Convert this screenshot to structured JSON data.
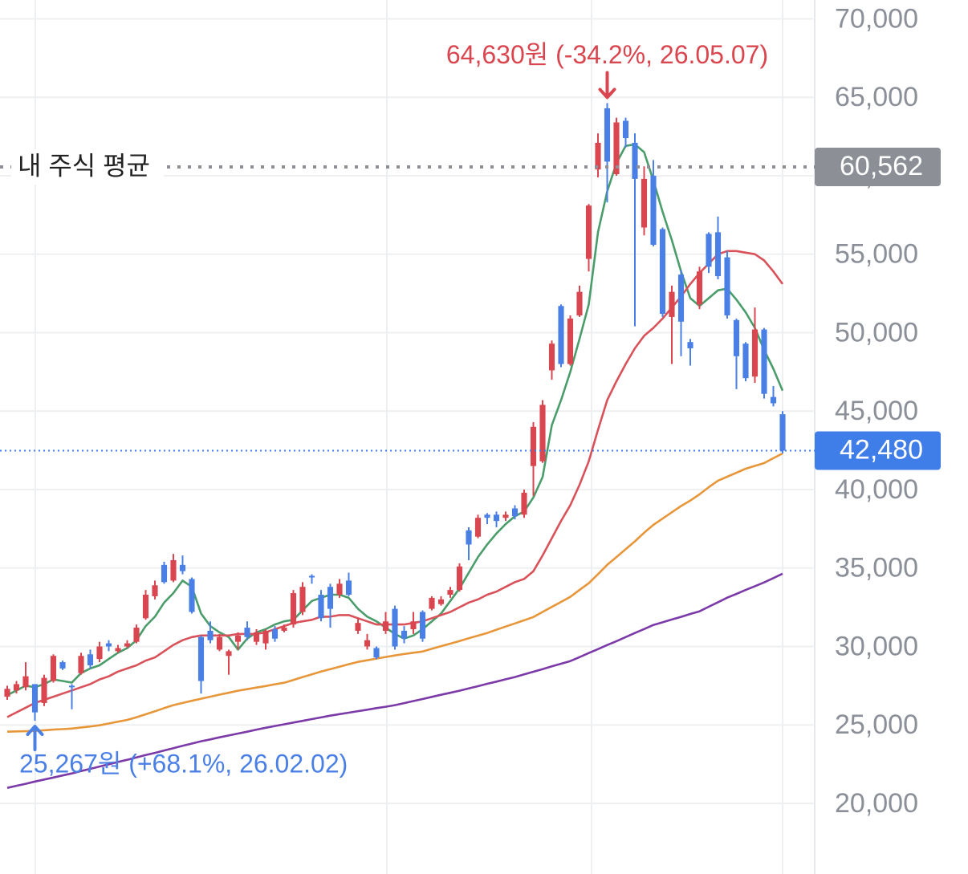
{
  "chart_data": {
    "type": "candlestick",
    "up_color": "#d9464f",
    "down_color": "#4a80e6",
    "ylim": [
      15500,
      71200
    ],
    "yticks": [
      {
        "value": 20000,
        "label": "20,000"
      },
      {
        "value": 25000,
        "label": "25,000"
      },
      {
        "value": 30000,
        "label": "30,000"
      },
      {
        "value": 35000,
        "label": "35,000"
      },
      {
        "value": 40000,
        "label": "40,000"
      },
      {
        "value": 45000,
        "label": "45,000"
      },
      {
        "value": 50000,
        "label": "50,000"
      },
      {
        "value": 55000,
        "label": "55,000"
      },
      {
        "value": 60000,
        "label": "60,000"
      },
      {
        "value": 65000,
        "label": "65,000"
      },
      {
        "value": 70000,
        "label": "70,000"
      }
    ],
    "grid": true,
    "open": [
      26800,
      27200,
      27400,
      27600,
      26400,
      27800,
      29000,
      27500,
      28300,
      29500,
      29200,
      30200,
      29700,
      30000,
      30300,
      31800,
      33200,
      35200,
      34200,
      35200,
      34300,
      30600,
      31000,
      29800,
      29400,
      30300,
      31200,
      30300,
      30200,
      31100,
      31000,
      31400,
      32200,
      34500,
      33300,
      33800,
      33300,
      34200,
      31000,
      30000,
      29900,
      31000,
      32400,
      31000,
      31100,
      32200,
      32400,
      32700,
      33300,
      33600,
      37400,
      37000,
      38400,
      38400,
      38200,
      38800,
      38400,
      41500,
      41800,
      47600,
      51700,
      48000,
      51100,
      54700,
      60400,
      64300,
      60100,
      63500,
      62100,
      56700,
      60000,
      56600,
      51000,
      53700,
      49400,
      51800,
      56300,
      56400,
      54800,
      50800,
      49300,
      47200,
      50200,
      45900,
      44800
    ],
    "high": [
      27500,
      27800,
      29000,
      27600,
      28200,
      29500,
      29100,
      27600,
      29600,
      29800,
      30300,
      30400,
      30100,
      30400,
      31400,
      33600,
      34200,
      35400,
      35900,
      35800,
      34400,
      30700,
      31600,
      30800,
      29800,
      30900,
      31600,
      31100,
      31100,
      31300,
      31400,
      33600,
      34100,
      34600,
      33600,
      34000,
      34300,
      34700,
      31800,
      30800,
      30000,
      32200,
      32600,
      31300,
      32200,
      32300,
      33200,
      33200,
      33800,
      35300,
      37600,
      38400,
      38500,
      38600,
      38600,
      39000,
      40000,
      44300,
      45700,
      49500,
      51800,
      51100,
      53000,
      58200,
      62700,
      64630,
      63700,
      63700,
      62700,
      60600,
      61000,
      56700,
      53000,
      54000,
      49600,
      54200,
      56400,
      57400,
      55200,
      50900,
      49400,
      51600,
      50300,
      46600,
      45000
    ],
    "low": [
      26600,
      27000,
      27200,
      25267,
      26200,
      27700,
      28500,
      26000,
      28200,
      28600,
      29000,
      29700,
      29600,
      29900,
      30200,
      31700,
      33000,
      34000,
      34100,
      34600,
      32100,
      27000,
      30200,
      29700,
      28200,
      29800,
      30400,
      30100,
      29800,
      30300,
      30900,
      31200,
      32000,
      34000,
      31600,
      31200,
      33100,
      33200,
      30800,
      29800,
      29200,
      30800,
      29800,
      30200,
      30800,
      30300,
      32300,
      32600,
      33100,
      33500,
      35500,
      36900,
      37800,
      37600,
      38000,
      38100,
      38200,
      39600,
      41700,
      47000,
      47800,
      47900,
      51000,
      53900,
      59900,
      58300,
      60000,
      61800,
      50400,
      56200,
      55500,
      51000,
      48000,
      48500,
      47900,
      51500,
      53800,
      53400,
      50900,
      46400,
      46900,
      46800,
      45800,
      45300,
      42300
    ],
    "close": [
      27300,
      27600,
      28100,
      25800,
      28000,
      29400,
      28600,
      27400,
      29400,
      28800,
      30000,
      30000,
      29900,
      30200,
      31200,
      33300,
      33900,
      34100,
      35500,
      34800,
      32200,
      27800,
      30400,
      30600,
      29700,
      30700,
      30600,
      30900,
      31000,
      30500,
      31200,
      33400,
      33800,
      34400,
      31800,
      32400,
      34000,
      33300,
      31500,
      30400,
      29300,
      31600,
      30000,
      30500,
      31600,
      30500,
      33100,
      33000,
      33600,
      35100,
      36500,
      38200,
      38200,
      38000,
      38400,
      38300,
      39800,
      44000,
      45400,
      49300,
      48000,
      50900,
      52600,
      58100,
      62100,
      60900,
      63400,
      62400,
      59800,
      59800,
      55600,
      51200,
      52600,
      50700,
      49000,
      53900,
      54200,
      53600,
      51100,
      48500,
      47100,
      50200,
      46100,
      45500,
      42480
    ],
    "series": [
      {
        "color": "#4a9d6a",
        "values": [
          26900,
          27200,
          27500,
          27400,
          27600,
          27900,
          27800,
          27700,
          28300,
          28600,
          28800,
          29200,
          29600,
          29900,
          30400,
          31300,
          31900,
          32800,
          33400,
          34200,
          33800,
          32100,
          31300,
          30900,
          30600,
          29800,
          30500,
          30900,
          31100,
          31400,
          31600,
          31700,
          32300,
          32900,
          33100,
          33300,
          33300,
          33100,
          32400,
          31900,
          31600,
          31200,
          30800,
          30500,
          30700,
          31100,
          31600,
          32100,
          32900,
          33700,
          34700,
          35700,
          36500,
          37200,
          37800,
          38300,
          38600,
          39500,
          40800,
          44100,
          45700,
          47500,
          49600,
          51800,
          56400,
          59000,
          60800,
          61900,
          62000,
          61500,
          59700,
          57700,
          55900,
          53900,
          52200,
          51700,
          52200,
          52700,
          52800,
          52100,
          51300,
          50300,
          48900,
          47700,
          46300
        ]
      },
      {
        "color": "#d9525a",
        "values": [
          25500,
          25800,
          26100,
          26400,
          26600,
          26800,
          27000,
          27200,
          27400,
          27600,
          27900,
          28100,
          28400,
          28600,
          28800,
          29100,
          29300,
          29700,
          30100,
          30400,
          30600,
          30700,
          30700,
          30700,
          30700,
          30800,
          30800,
          30800,
          30900,
          31100,
          31300,
          31500,
          31600,
          31700,
          31900,
          31900,
          32000,
          32000,
          31800,
          31600,
          31400,
          31400,
          31400,
          31400,
          31500,
          31600,
          31800,
          32000,
          32200,
          32500,
          32800,
          33000,
          33300,
          33500,
          33800,
          34100,
          34300,
          34800,
          35800,
          36900,
          38000,
          39000,
          40300,
          41800,
          43800,
          45700,
          46900,
          48000,
          49000,
          49800,
          50300,
          50900,
          51600,
          52300,
          53100,
          53800,
          54400,
          55000,
          55200,
          55200,
          55100,
          55000,
          54600,
          53900,
          53100
        ]
      },
      {
        "color": "#e8963a",
        "values": [
          24570,
          24590,
          24600,
          24620,
          24660,
          24700,
          24730,
          24770,
          24840,
          24900,
          24980,
          25090,
          25210,
          25320,
          25490,
          25680,
          25870,
          26070,
          26260,
          26400,
          26540,
          26670,
          26800,
          26930,
          27050,
          27180,
          27280,
          27380,
          27480,
          27590,
          27690,
          27870,
          28050,
          28220,
          28400,
          28560,
          28710,
          28870,
          29020,
          29120,
          29230,
          29330,
          29430,
          29520,
          29600,
          29680,
          29850,
          30020,
          30180,
          30350,
          30520,
          30690,
          30860,
          31070,
          31270,
          31470,
          31670,
          31880,
          32200,
          32520,
          32840,
          33160,
          33600,
          34030,
          34610,
          35200,
          35700,
          36200,
          36700,
          37250,
          37750,
          38150,
          38550,
          38950,
          39300,
          39700,
          40150,
          40570,
          40820,
          41070,
          41330,
          41510,
          41690,
          42000,
          42300
        ]
      },
      {
        "color": "#7b3aa8",
        "values": [
          20990,
          21120,
          21250,
          21390,
          21520,
          21650,
          21780,
          21910,
          22060,
          22200,
          22350,
          22490,
          22640,
          22780,
          22930,
          23080,
          23220,
          23370,
          23520,
          23670,
          23810,
          23960,
          24080,
          24210,
          24330,
          24450,
          24570,
          24700,
          24820,
          24930,
          25040,
          25150,
          25260,
          25370,
          25480,
          25590,
          25690,
          25780,
          25880,
          25970,
          26070,
          26160,
          26260,
          26390,
          26520,
          26650,
          26790,
          26920,
          27050,
          27180,
          27330,
          27470,
          27620,
          27760,
          27910,
          28050,
          28220,
          28390,
          28560,
          28730,
          28900,
          29070,
          29320,
          29580,
          29830,
          30090,
          30340,
          30600,
          30860,
          31110,
          31370,
          31540,
          31720,
          31890,
          32070,
          32240,
          32530,
          32820,
          33110,
          33350,
          33600,
          33840,
          34080,
          34360,
          34640
        ]
      }
    ],
    "average_line": {
      "text": "내 주식 평균",
      "value": 60562,
      "label": "60,562",
      "color": "#8c9096"
    },
    "current_price": {
      "value": 42480,
      "label": "42,480",
      "color": "#3f7de8"
    },
    "annotations": [
      {
        "text": "64,630원 (-34.2%, 26.05.07)",
        "value": 64630,
        "color": "#d9464f"
      },
      {
        "text": "25,267원 (+68.1%, 26.02.02)",
        "value": 25267,
        "color": "#4a80e6"
      }
    ]
  }
}
